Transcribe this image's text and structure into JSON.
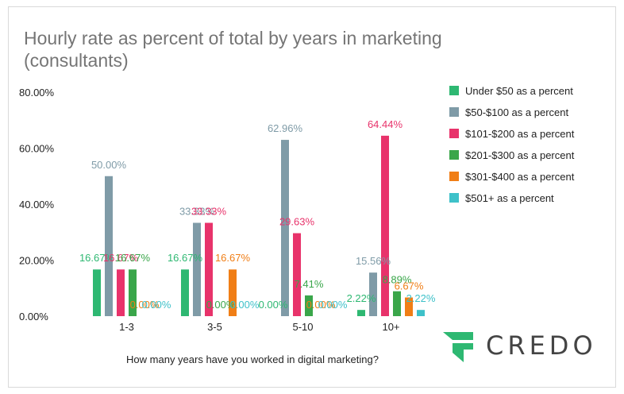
{
  "chart_data": {
    "type": "bar",
    "title": "Hourly rate as percent of total by years in marketing (consultants)",
    "xlabel": "How many years have you worked in digital marketing?",
    "ylabel": "",
    "ylim": [
      0,
      80
    ],
    "yticks": [
      "0.00%",
      "20.00%",
      "40.00%",
      "60.00%",
      "80.00%"
    ],
    "categories": [
      "1-3",
      "3-5",
      "5-10",
      "10+"
    ],
    "legend_position": "right",
    "grid": false,
    "series": [
      {
        "name": "Under $50 as a percent",
        "color": "#2eb872",
        "values": [
          16.67,
          16.67,
          0.0,
          2.22
        ],
        "labels": [
          "16.67%",
          "16.67%",
          "0.00%",
          "2.22%"
        ]
      },
      {
        "name": "$50-$100 as a percent",
        "color": "#7f9ba7",
        "values": [
          50.0,
          33.33,
          62.96,
          15.56
        ],
        "labels": [
          "50.00%",
          "33.33%",
          "62.96%",
          "15.56%"
        ]
      },
      {
        "name": "$101-$200 as a percent",
        "color": "#e8336b",
        "values": [
          16.67,
          33.33,
          29.63,
          64.44
        ],
        "labels": [
          "16.67%",
          "33.33%",
          "29.63%",
          "64.44%"
        ]
      },
      {
        "name": "$201-$300 as a percent",
        "color": "#3aa64a",
        "values": [
          16.67,
          0.0,
          7.41,
          8.89
        ],
        "labels": [
          "16.67%",
          "0.00%",
          "7.41%",
          "8.89%"
        ]
      },
      {
        "name": "$301-$400 as a percent",
        "color": "#f07e16",
        "values": [
          0.0,
          16.67,
          0.0,
          6.67
        ],
        "labels": [
          "0.00%",
          "16.67%",
          "0.00%",
          "6.67%"
        ]
      },
      {
        "name": "$501+ as a percent",
        "color": "#3ec1c9",
        "values": [
          0.0,
          0.0,
          0.0,
          2.22
        ],
        "labels": [
          "0.00%",
          "0.00%",
          "0.00%",
          "2.22%"
        ]
      }
    ]
  },
  "logo": {
    "text": "CREDO",
    "color": "#2eb872",
    "text_color": "#444444"
  }
}
